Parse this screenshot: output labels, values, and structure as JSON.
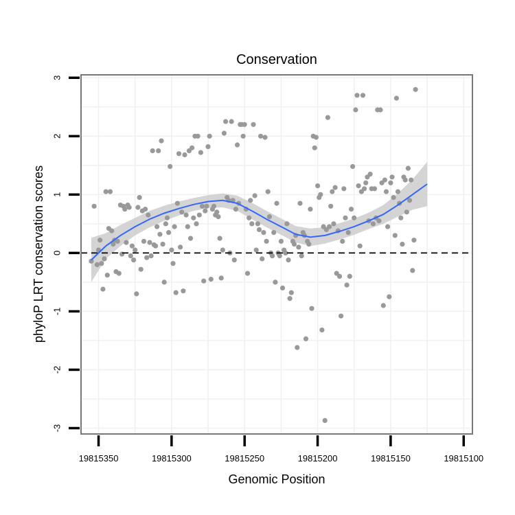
{
  "chart_data": {
    "type": "scatter",
    "title": "Conservation",
    "xlabel": "Genomic Position",
    "ylabel": "phyloP LRT conservation scores",
    "x_reversed": true,
    "xlim": [
      19815362,
      19815094
    ],
    "ylim": [
      -3.1,
      3.05
    ],
    "x_ticks": [
      19815350,
      19815300,
      19815250,
      19815200,
      19815150,
      19815100
    ],
    "x_tick_labels": [
      "19815350",
      "19815300",
      "19815250",
      "19815200",
      "19815150",
      "19815100"
    ],
    "y_ticks": [
      -3,
      -2,
      -1,
      0,
      1,
      2,
      3
    ],
    "y_tick_labels": [
      "-3",
      "-2",
      "-1",
      "0",
      "1",
      "2",
      "3"
    ],
    "grid": true,
    "reference_line": {
      "y": 0,
      "style": "dashed"
    },
    "colors": {
      "points": "#999999",
      "smooth_line": "#3366FF",
      "ribbon": "#cccccc",
      "panel_border": "#777777",
      "grid": "#f0f0f0",
      "reference_line": "#000000"
    },
    "series": [
      {
        "name": "scores",
        "points": [
          [
            19815355,
            -0.14
          ],
          [
            19815353,
            0.8
          ],
          [
            19815351,
            -0.2
          ],
          [
            19815350,
            0.05
          ],
          [
            19815349,
            0.22
          ],
          [
            19815348,
            -0.18
          ],
          [
            19815347,
            -0.62
          ],
          [
            19815346,
            -0.1
          ],
          [
            19815345,
            1.05
          ],
          [
            19815344,
            -0.38
          ],
          [
            19815343,
            0.42
          ],
          [
            19815342,
            1.05
          ],
          [
            19815341,
            0.38
          ],
          [
            19815340,
            0.15
          ],
          [
            19815339,
            0.22
          ],
          [
            19815338,
            -0.32
          ],
          [
            19815337,
            0.2
          ],
          [
            19815336,
            -0.35
          ],
          [
            19815335,
            0.82
          ],
          [
            19815334,
            -0.02
          ],
          [
            19815333,
            0.8
          ],
          [
            19815332,
            0.75
          ],
          [
            19815331,
            0.18
          ],
          [
            19815330,
            0.82
          ],
          [
            19815329,
            0.78
          ],
          [
            19815328,
            -0.05
          ],
          [
            19815327,
            0.12
          ],
          [
            19815326,
            -0.12
          ],
          [
            19815325,
            0.05
          ],
          [
            19815324,
            -0.7
          ],
          [
            19815323,
            0.78
          ],
          [
            19815322,
            0.95
          ],
          [
            19815321,
            -0.28
          ],
          [
            19815320,
            0.72
          ],
          [
            19815319,
            0.2
          ],
          [
            19815318,
            0.75
          ],
          [
            19815317,
            -0.08
          ],
          [
            19815316,
            0.65
          ],
          [
            19815315,
            0.18
          ],
          [
            19815314,
            -0.05
          ],
          [
            19815313,
            1.75
          ],
          [
            19815312,
            0.14
          ],
          [
            19815311,
            0.12
          ],
          [
            19815310,
            0.45
          ],
          [
            19815309,
            1.75
          ],
          [
            19815308,
            0.32
          ],
          [
            19815307,
            1.92
          ],
          [
            19815306,
            0.15
          ],
          [
            19815305,
            -0.5
          ],
          [
            19815304,
            0.5
          ],
          [
            19815303,
            0.6
          ],
          [
            19815302,
            0.35
          ],
          [
            19815301,
            1.48
          ],
          [
            19815300,
            0.05
          ],
          [
            19815299,
            -0.18
          ],
          [
            19815298,
            0.45
          ],
          [
            19815297,
            -0.68
          ],
          [
            19815296,
            0.85
          ],
          [
            19815295,
            1.7
          ],
          [
            19815294,
            0.1
          ],
          [
            19815293,
            0.7
          ],
          [
            19815292,
            -0.65
          ],
          [
            19815291,
            1.68
          ],
          [
            19815290,
            0.65
          ],
          [
            19815289,
            0.45
          ],
          [
            19815288,
            1.75
          ],
          [
            19815287,
            0.25
          ],
          [
            19815286,
            1.8
          ],
          [
            19815285,
            0.6
          ],
          [
            19815284,
            2.0
          ],
          [
            19815283,
            0.5
          ],
          [
            19815282,
            2.0
          ],
          [
            19815281,
            0.65
          ],
          [
            19815280,
            1.72
          ],
          [
            19815279,
            0.8
          ],
          [
            19815278,
            -0.48
          ],
          [
            19815277,
            0.72
          ],
          [
            19815276,
            0.8
          ],
          [
            19815275,
            1.82
          ],
          [
            19815274,
            2.0
          ],
          [
            19815273,
            -0.45
          ],
          [
            19815272,
            0.75
          ],
          [
            19815271,
            0.8
          ],
          [
            19815270,
            0.65
          ],
          [
            19815269,
            0.7
          ],
          [
            19815268,
            0.62
          ],
          [
            19815267,
            0.25
          ],
          [
            19815266,
            -0.43
          ],
          [
            19815265,
            0.05
          ],
          [
            19815264,
            2.05
          ],
          [
            19815263,
            2.25
          ],
          [
            19815262,
            0.95
          ],
          [
            19815261,
            0.9
          ],
          [
            19815260,
            0.0
          ],
          [
            19815259,
            2.25
          ],
          [
            19815258,
            0.9
          ],
          [
            19815257,
            -0.12
          ],
          [
            19815256,
            0.75
          ],
          [
            19815255,
            1.85
          ],
          [
            19815254,
            0.85
          ],
          [
            19815253,
            2.2
          ],
          [
            19815252,
            2.2
          ],
          [
            19815251,
            2.0
          ],
          [
            19815250,
            2.2
          ],
          [
            19815249,
            0.75
          ],
          [
            19815248,
            -0.35
          ],
          [
            19815247,
            0.6
          ],
          [
            19815246,
            0.9
          ],
          [
            19815245,
            0.5
          ],
          [
            19815244,
            2.2
          ],
          [
            19815243,
            0.98
          ],
          [
            19815242,
            0.05
          ],
          [
            19815241,
            0.5
          ],
          [
            19815240,
            0.4
          ],
          [
            19815239,
            2.0
          ],
          [
            19815238,
            -0.1
          ],
          [
            19815237,
            0.35
          ],
          [
            19815236,
            1.98
          ],
          [
            19815235,
            0.2
          ],
          [
            19815234,
            1.05
          ],
          [
            19815233,
            0.62
          ],
          [
            19815232,
            0.0
          ],
          [
            19815231,
            -0.05
          ],
          [
            19815230,
            0.35
          ],
          [
            19815229,
            -0.5
          ],
          [
            19815228,
            0.85
          ],
          [
            19815227,
            0.0
          ],
          [
            19815226,
            -0.05
          ],
          [
            19815225,
            0.2
          ],
          [
            19815224,
            -0.6
          ],
          [
            19815223,
            0.05
          ],
          [
            19815222,
            0.0
          ],
          [
            19815221,
            0.5
          ],
          [
            19815220,
            -0.12
          ],
          [
            19815219,
            -0.78
          ],
          [
            19815218,
            -0.68
          ],
          [
            19815217,
            0.2
          ],
          [
            19815216,
            0.15
          ],
          [
            19815215,
            0.3
          ],
          [
            19815214,
            -1.62
          ],
          [
            19815213,
            0.1
          ],
          [
            19815212,
            0.85
          ],
          [
            19815211,
            -0.05
          ],
          [
            19815210,
            0.35
          ],
          [
            19815209,
            0.3
          ],
          [
            19815208,
            -1.47
          ],
          [
            19815207,
            0.2
          ],
          [
            19815206,
            0.15
          ],
          [
            19815205,
            0.75
          ],
          [
            19815204,
            -0.95
          ],
          [
            19815203,
            2.0
          ],
          [
            19815202,
            1.8
          ],
          [
            19815201,
            1.98
          ],
          [
            19815200,
            1.15
          ],
          [
            19815199,
            0.95
          ],
          [
            19815198,
            1.0
          ],
          [
            19815197,
            -1.32
          ],
          [
            19815196,
            0.45
          ],
          [
            19815195,
            -2.87
          ],
          [
            19815194,
            0.4
          ],
          [
            19815193,
            2.32
          ],
          [
            19815192,
            0.45
          ],
          [
            19815191,
            0.8
          ],
          [
            19815190,
            1.05
          ],
          [
            19815189,
            0.5
          ],
          [
            19815188,
            1.12
          ],
          [
            19815187,
            -0.35
          ],
          [
            19815186,
            0.38
          ],
          [
            19815185,
            -0.4
          ],
          [
            19815184,
            -1.08
          ],
          [
            19815183,
            0.2
          ],
          [
            19815182,
            1.1
          ],
          [
            19815181,
            0.6
          ],
          [
            19815180,
            -0.55
          ],
          [
            19815179,
            0.35
          ],
          [
            19815178,
            -0.4
          ],
          [
            19815177,
            0.75
          ],
          [
            19815176,
            1.48
          ],
          [
            19815175,
            0.6
          ],
          [
            19815174,
            2.45
          ],
          [
            19815173,
            2.7
          ],
          [
            19815172,
            1.15
          ],
          [
            19815171,
            0.12
          ],
          [
            19815170,
            1.05
          ],
          [
            19815169,
            2.7
          ],
          [
            19815168,
            1.1
          ],
          [
            19815167,
            1.2
          ],
          [
            19815166,
            1.3
          ],
          [
            19815165,
            0.55
          ],
          [
            19815164,
            1.35
          ],
          [
            19815163,
            1.1
          ],
          [
            19815162,
            0.5
          ],
          [
            19815161,
            1.1
          ],
          [
            19815160,
            0.6
          ],
          [
            19815159,
            2.45
          ],
          [
            19815158,
            0.55
          ],
          [
            19815157,
            2.45
          ],
          [
            19815156,
            1.2
          ],
          [
            19815155,
            -0.9
          ],
          [
            19815154,
            1.25
          ],
          [
            19815153,
            1.05
          ],
          [
            19815152,
            0.45
          ],
          [
            19815151,
            -0.75
          ],
          [
            19815150,
            1.2
          ],
          [
            19815149,
            1.3
          ],
          [
            19815148,
            0.95
          ],
          [
            19815147,
            0.3
          ],
          [
            19815146,
            2.65
          ],
          [
            19815145,
            1.05
          ],
          [
            19815144,
            0.85
          ],
          [
            19815143,
            0.6
          ],
          [
            19815142,
            0.15
          ],
          [
            19815141,
            1.3
          ],
          [
            19815140,
            1.25
          ],
          [
            19815139,
            0.7
          ],
          [
            19815138,
            1.45
          ],
          [
            19815137,
            0.9
          ],
          [
            19815136,
            1.25
          ],
          [
            19815135,
            -0.3
          ],
          [
            19815134,
            0.22
          ],
          [
            19815133,
            2.8
          ]
        ]
      },
      {
        "name": "smooth_fit",
        "line": [
          [
            19815355,
            -0.12
          ],
          [
            19815345,
            0.12
          ],
          [
            19815335,
            0.3
          ],
          [
            19815325,
            0.45
          ],
          [
            19815315,
            0.58
          ],
          [
            19815305,
            0.68
          ],
          [
            19815295,
            0.76
          ],
          [
            19815285,
            0.83
          ],
          [
            19815275,
            0.88
          ],
          [
            19815265,
            0.9
          ],
          [
            19815255,
            0.85
          ],
          [
            19815245,
            0.72
          ],
          [
            19815235,
            0.58
          ],
          [
            19815225,
            0.45
          ],
          [
            19815215,
            0.32
          ],
          [
            19815205,
            0.27
          ],
          [
            19815195,
            0.3
          ],
          [
            19815185,
            0.37
          ],
          [
            19815175,
            0.45
          ],
          [
            19815165,
            0.55
          ],
          [
            19815155,
            0.66
          ],
          [
            19815145,
            0.82
          ],
          [
            19815135,
            1.0
          ],
          [
            19815125,
            1.18
          ]
        ],
        "band_lower": [
          [
            19815355,
            -0.5
          ],
          [
            19815345,
            -0.1
          ],
          [
            19815335,
            0.12
          ],
          [
            19815325,
            0.3
          ],
          [
            19815315,
            0.44
          ],
          [
            19815305,
            0.55
          ],
          [
            19815295,
            0.64
          ],
          [
            19815285,
            0.72
          ],
          [
            19815275,
            0.77
          ],
          [
            19815265,
            0.78
          ],
          [
            19815255,
            0.72
          ],
          [
            19815245,
            0.58
          ],
          [
            19815235,
            0.44
          ],
          [
            19815225,
            0.31
          ],
          [
            19815215,
            0.18
          ],
          [
            19815205,
            0.12
          ],
          [
            19815195,
            0.16
          ],
          [
            19815185,
            0.23
          ],
          [
            19815175,
            0.31
          ],
          [
            19815165,
            0.41
          ],
          [
            19815155,
            0.5
          ],
          [
            19815145,
            0.62
          ],
          [
            19815135,
            0.74
          ],
          [
            19815125,
            0.8
          ]
        ],
        "band_upper": [
          [
            19815355,
            0.26
          ],
          [
            19815345,
            0.34
          ],
          [
            19815335,
            0.48
          ],
          [
            19815325,
            0.6
          ],
          [
            19815315,
            0.72
          ],
          [
            19815305,
            0.81
          ],
          [
            19815295,
            0.88
          ],
          [
            19815285,
            0.94
          ],
          [
            19815275,
            0.99
          ],
          [
            19815265,
            1.02
          ],
          [
            19815255,
            0.98
          ],
          [
            19815245,
            0.86
          ],
          [
            19815235,
            0.72
          ],
          [
            19815225,
            0.59
          ],
          [
            19815215,
            0.46
          ],
          [
            19815205,
            0.42
          ],
          [
            19815195,
            0.44
          ],
          [
            19815185,
            0.51
          ],
          [
            19815175,
            0.59
          ],
          [
            19815165,
            0.69
          ],
          [
            19815155,
            0.82
          ],
          [
            19815145,
            1.02
          ],
          [
            19815135,
            1.26
          ],
          [
            19815125,
            1.56
          ]
        ]
      }
    ]
  }
}
